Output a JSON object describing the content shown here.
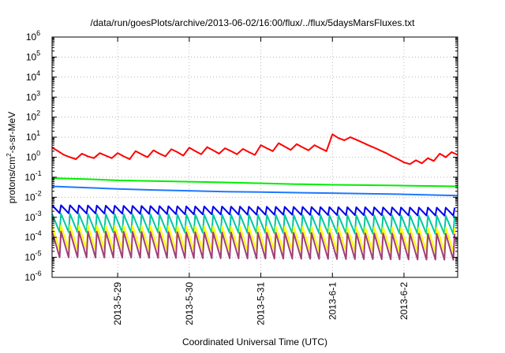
{
  "chart_data": {
    "type": "line",
    "title": "/data/run/goesPlots/archive/2013-06-02/16:00/flux/../flux/5daysMarsFluxes.txt",
    "xlabel": "Coordinated Universal Time (UTC)",
    "ylabel_parts": {
      "pre": "protons/cm",
      "sup": "2",
      "post": "-s-sr-MeV"
    },
    "x_range": [
      "2013-05-28T02:00",
      "2013-06-02T18:00"
    ],
    "y_scale": "log",
    "ylim": [
      1e-06,
      1000000.0
    ],
    "grid": true,
    "x_ticks": [
      {
        "label": "2013-5-29",
        "t": "2013-05-29T00:00"
      },
      {
        "label": "2013-5-30",
        "t": "2013-05-30T00:00"
      },
      {
        "label": "2013-5-31",
        "t": "2013-05-31T00:00"
      },
      {
        "label": "2013-6-1",
        "t": "2013-06-01T00:00"
      },
      {
        "label": "2013-6-2",
        "t": "2013-06-02T00:00"
      }
    ],
    "y_ticks": [
      {
        "base": "10",
        "exp": "-6"
      },
      {
        "base": "10",
        "exp": "-5"
      },
      {
        "base": "10",
        "exp": "-4"
      },
      {
        "base": "10",
        "exp": "-3"
      },
      {
        "base": "10",
        "exp": "-2"
      },
      {
        "base": "10",
        "exp": "-1"
      },
      {
        "base": "10",
        "exp": "0"
      },
      {
        "base": "10",
        "exp": "1"
      },
      {
        "base": "10",
        "exp": "2"
      },
      {
        "base": "10",
        "exp": "3"
      },
      {
        "base": "10",
        "exp": "4"
      },
      {
        "base": "10",
        "exp": "5"
      },
      {
        "base": "10",
        "exp": "6"
      }
    ],
    "series": [
      {
        "color": "#ff0000",
        "points": [
          [
            "2013-05-28T02:00",
            3.0
          ],
          [
            "2013-05-28T04:00",
            2.0
          ],
          [
            "2013-05-28T06:00",
            1.3
          ],
          [
            "2013-05-28T08:00",
            1.0
          ],
          [
            "2013-05-28T10:00",
            0.8
          ],
          [
            "2013-05-28T12:00",
            1.5
          ],
          [
            "2013-05-28T14:00",
            1.1
          ],
          [
            "2013-05-28T16:00",
            0.9
          ],
          [
            "2013-05-28T18:00",
            1.6
          ],
          [
            "2013-05-28T20:00",
            1.2
          ],
          [
            "2013-05-28T22:00",
            0.9
          ],
          [
            "2013-05-29T00:00",
            1.6
          ],
          [
            "2013-05-29T02:00",
            1.1
          ],
          [
            "2013-05-29T04:00",
            0.8
          ],
          [
            "2013-05-29T06:00",
            2.0
          ],
          [
            "2013-05-29T08:00",
            1.4
          ],
          [
            "2013-05-29T10:00",
            1.0
          ],
          [
            "2013-05-29T12:00",
            2.2
          ],
          [
            "2013-05-29T14:00",
            1.5
          ],
          [
            "2013-05-29T16:00",
            1.1
          ],
          [
            "2013-05-29T18:00",
            2.5
          ],
          [
            "2013-05-29T20:00",
            1.8
          ],
          [
            "2013-05-29T22:00",
            1.2
          ],
          [
            "2013-05-30T00:00",
            3.0
          ],
          [
            "2013-05-30T02:00",
            2.0
          ],
          [
            "2013-05-30T04:00",
            1.4
          ],
          [
            "2013-05-30T06:00",
            3.2
          ],
          [
            "2013-05-30T08:00",
            2.2
          ],
          [
            "2013-05-30T10:00",
            1.5
          ],
          [
            "2013-05-30T12:00",
            2.8
          ],
          [
            "2013-05-30T14:00",
            2.0
          ],
          [
            "2013-05-30T16:00",
            1.4
          ],
          [
            "2013-05-30T18:00",
            2.6
          ],
          [
            "2013-05-30T20:00",
            1.8
          ],
          [
            "2013-05-30T22:00",
            1.3
          ],
          [
            "2013-05-31T00:00",
            4.0
          ],
          [
            "2013-05-31T02:00",
            2.8
          ],
          [
            "2013-05-31T04:00",
            2.0
          ],
          [
            "2013-05-31T06:00",
            5.0
          ],
          [
            "2013-05-31T08:00",
            3.4
          ],
          [
            "2013-05-31T10:00",
            2.3
          ],
          [
            "2013-05-31T12:00",
            4.5
          ],
          [
            "2013-05-31T14:00",
            3.1
          ],
          [
            "2013-05-31T16:00",
            2.2
          ],
          [
            "2013-05-31T18:00",
            4.0
          ],
          [
            "2013-05-31T20:00",
            2.8
          ],
          [
            "2013-05-31T22:00",
            2.0
          ],
          [
            "2013-06-01T00:00",
            14.0
          ],
          [
            "2013-06-01T02:00",
            9.0
          ],
          [
            "2013-06-01T04:00",
            7.0
          ],
          [
            "2013-06-01T06:00",
            10.0
          ],
          [
            "2013-06-01T08:00",
            7.5
          ],
          [
            "2013-06-01T10:00",
            5.5
          ],
          [
            "2013-06-01T12:00",
            4.0
          ],
          [
            "2013-06-01T14:00",
            3.0
          ],
          [
            "2013-06-01T16:00",
            2.2
          ],
          [
            "2013-06-01T18:00",
            1.6
          ],
          [
            "2013-06-01T20:00",
            1.1
          ],
          [
            "2013-06-01T22:00",
            0.8
          ],
          [
            "2013-06-02T00:00",
            0.55
          ],
          [
            "2013-06-02T02:00",
            0.45
          ],
          [
            "2013-06-02T04:00",
            0.7
          ],
          [
            "2013-06-02T06:00",
            0.5
          ],
          [
            "2013-06-02T08:00",
            0.9
          ],
          [
            "2013-06-02T10:00",
            0.65
          ],
          [
            "2013-06-02T12:00",
            1.5
          ],
          [
            "2013-06-02T14:00",
            1.0
          ],
          [
            "2013-06-02T16:00",
            1.8
          ],
          [
            "2013-06-02T18:00",
            1.3
          ]
        ]
      },
      {
        "color": "#00ee00",
        "points": [
          [
            "2013-05-28T02:00",
            0.09
          ],
          [
            "2013-05-28T14:00",
            0.08
          ],
          [
            "2013-05-29T00:00",
            0.07
          ],
          [
            "2013-05-29T12:00",
            0.065
          ],
          [
            "2013-05-30T00:00",
            0.06
          ],
          [
            "2013-05-30T12:00",
            0.055
          ],
          [
            "2013-05-31T00:00",
            0.05
          ],
          [
            "2013-05-31T12:00",
            0.045
          ],
          [
            "2013-06-01T00:00",
            0.042
          ],
          [
            "2013-06-01T12:00",
            0.04
          ],
          [
            "2013-06-02T00:00",
            0.038
          ],
          [
            "2013-06-02T18:00",
            0.035
          ]
        ]
      },
      {
        "color": "#1e78ff",
        "points": [
          [
            "2013-05-28T02:00",
            0.035
          ],
          [
            "2013-05-28T14:00",
            0.03
          ],
          [
            "2013-05-29T00:00",
            0.026
          ],
          [
            "2013-05-29T12:00",
            0.023
          ],
          [
            "2013-05-30T00:00",
            0.021
          ],
          [
            "2013-05-30T12:00",
            0.019
          ],
          [
            "2013-05-31T00:00",
            0.018
          ],
          [
            "2013-05-31T12:00",
            0.017
          ],
          [
            "2013-06-01T00:00",
            0.016
          ],
          [
            "2013-06-01T12:00",
            0.015
          ],
          [
            "2013-06-02T00:00",
            0.014
          ],
          [
            "2013-06-02T18:00",
            0.012
          ]
        ]
      },
      {
        "color": "#0000ee",
        "cycle_hours": 3,
        "points": [
          [
            "2013-05-28T02:00",
            0.004
          ],
          [
            "2013-05-30T00:00",
            0.0035
          ],
          [
            "2013-06-02T18:00",
            0.003
          ]
        ],
        "trough_ratio": 0.4
      },
      {
        "color": "#00c8a0",
        "cycle_hours": 3,
        "points": [
          [
            "2013-05-28T02:00",
            0.0015
          ],
          [
            "2013-06-02T18:00",
            0.0012
          ]
        ],
        "trough_ratio": 0.12
      },
      {
        "color": "#ffff00",
        "cycle_hours": 3,
        "points": [
          [
            "2013-05-28T02:00",
            0.0004
          ],
          [
            "2013-06-02T18:00",
            0.0003
          ]
        ],
        "trough_ratio": 0.06
      },
      {
        "color": "#a0407a",
        "cycle_hours": 3,
        "points": [
          [
            "2013-05-28T02:00",
            0.0002
          ],
          [
            "2013-06-02T18:00",
            0.00015
          ]
        ],
        "trough_ratio": 0.05
      }
    ]
  }
}
